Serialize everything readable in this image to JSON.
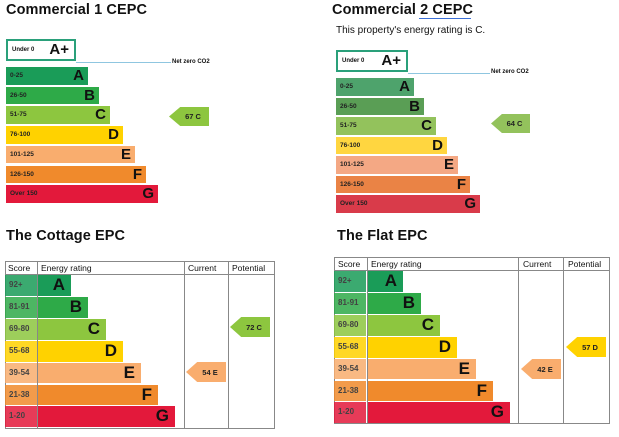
{
  "c1": {
    "title": "Commercial 1 CEPC",
    "aplus_range": "Under 0",
    "aplus_letter": "A+",
    "net_zero": "Net zero CO2",
    "bands": [
      {
        "range": "0-25",
        "letter": "A"
      },
      {
        "range": "26-50",
        "letter": "B"
      },
      {
        "range": "51-75",
        "letter": "C"
      },
      {
        "range": "76-100",
        "letter": "D"
      },
      {
        "range": "101-125",
        "letter": "E"
      },
      {
        "range": "126-150",
        "letter": "F"
      },
      {
        "range": "Over 150",
        "letter": "G"
      }
    ],
    "rating": "67  C"
  },
  "c2": {
    "title": "Commercial 2  CEPC",
    "subtitle": "This property's energy rating is C.",
    "aplus_range": "Under 0",
    "aplus_letter": "A+",
    "net_zero": "Net zero CO2",
    "bands": [
      {
        "range": "0-25",
        "letter": "A"
      },
      {
        "range": "26-50",
        "letter": "B"
      },
      {
        "range": "51-75",
        "letter": "C"
      },
      {
        "range": "76-100",
        "letter": "D"
      },
      {
        "range": "101-125",
        "letter": "E"
      },
      {
        "range": "126-150",
        "letter": "F"
      },
      {
        "range": "Over 150",
        "letter": "G"
      }
    ],
    "rating": "64  C"
  },
  "cottage": {
    "title": "The Cottage EPC",
    "headers": {
      "score": "Score",
      "energy": "Energy rating",
      "current": "Current",
      "potential": "Potential"
    },
    "bands": [
      {
        "range": "92+",
        "letter": "A"
      },
      {
        "range": "81-91",
        "letter": "B"
      },
      {
        "range": "69-80",
        "letter": "C"
      },
      {
        "range": "55-68",
        "letter": "D"
      },
      {
        "range": "39-54",
        "letter": "E"
      },
      {
        "range": "21-38",
        "letter": "F"
      },
      {
        "range": "1-20",
        "letter": "G"
      }
    ],
    "current": "54  E",
    "potential": "72  C"
  },
  "flat": {
    "title": "The Flat EPC",
    "headers": {
      "score": "Score",
      "energy": "Energy rating",
      "current": "Current",
      "potential": "Potential"
    },
    "bands": [
      {
        "range": "92+",
        "letter": "A"
      },
      {
        "range": "81-91",
        "letter": "B"
      },
      {
        "range": "69-80",
        "letter": "C"
      },
      {
        "range": "55-68",
        "letter": "D"
      },
      {
        "range": "39-54",
        "letter": "E"
      },
      {
        "range": "21-38",
        "letter": "F"
      },
      {
        "range": "1-20",
        "letter": "G"
      }
    ],
    "current": "42  E",
    "potential": "57  D"
  },
  "colors": {
    "A": "#1a9c58",
    "B": "#2eaa48",
    "C": "#8dc63f",
    "D": "#ffd200",
    "E": "#f9ad6e",
    "F": "#f08a2c",
    "G": "#e3193b",
    "A_fade": "#4ea36c",
    "B_fade": "#5a9e55",
    "C_fade": "#93c25c",
    "D_fade": "#ffd640",
    "E_fade": "#f4a884",
    "F_fade": "#ea8345",
    "G_fade": "#d93b4a",
    "aplus_border": "#2aa07a"
  }
}
